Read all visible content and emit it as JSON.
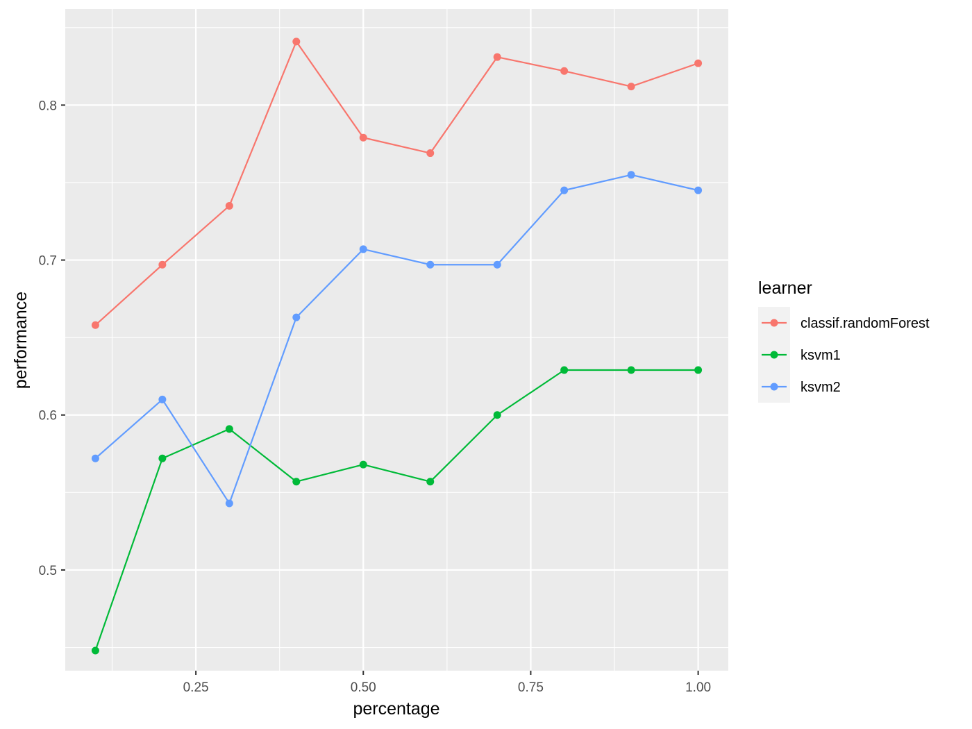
{
  "chart_data": {
    "type": "line",
    "xlabel": "percentage",
    "ylabel": "performance",
    "xlim": [
      0.055,
      1.045
    ],
    "ylim": [
      0.435,
      0.862
    ],
    "x_ticks": [
      0.25,
      0.5,
      0.75,
      1.0
    ],
    "x_tick_labels": [
      "0.25",
      "0.50",
      "0.75",
      "1.00"
    ],
    "x_minor_ticks": [
      0.125,
      0.375,
      0.625,
      0.875
    ],
    "y_ticks": [
      0.5,
      0.6,
      0.7,
      0.8
    ],
    "y_tick_labels": [
      "0.5",
      "0.6",
      "0.7",
      "0.8"
    ],
    "y_minor_ticks": [
      0.45,
      0.55,
      0.65,
      0.75,
      0.85
    ],
    "x": [
      0.1,
      0.2,
      0.3,
      0.4,
      0.5,
      0.6,
      0.7,
      0.8,
      0.9,
      1.0
    ],
    "grid": true,
    "background": "#EBEBEB",
    "legend": {
      "title": "learner",
      "position": "right"
    },
    "series": [
      {
        "name": "classif.randomForest",
        "color": "#F8766D",
        "values": [
          0.658,
          0.697,
          0.735,
          0.841,
          0.779,
          0.769,
          0.831,
          0.822,
          0.812,
          0.827
        ]
      },
      {
        "name": "ksvm1",
        "color": "#00BA38",
        "values": [
          0.448,
          0.572,
          0.591,
          0.557,
          0.568,
          0.557,
          0.6,
          0.629,
          0.629,
          0.629
        ]
      },
      {
        "name": "ksvm2",
        "color": "#619CFF",
        "values": [
          0.572,
          0.61,
          0.543,
          0.663,
          0.707,
          0.697,
          0.697,
          0.745,
          0.755,
          0.745
        ]
      }
    ]
  }
}
